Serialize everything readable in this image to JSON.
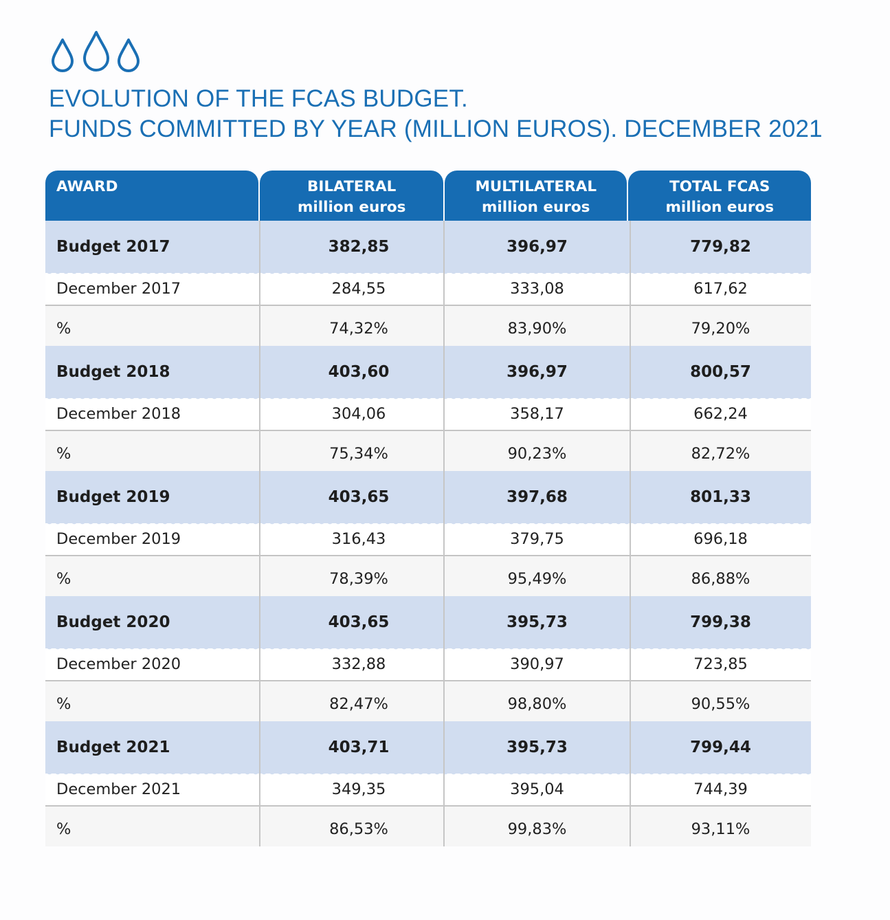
{
  "colors": {
    "brand_blue": "#166cb3",
    "title_blue": "#1a6fb4",
    "budget_row_bg": "#d1ddf0",
    "percent_row_bg": "#f6f6f6",
    "rule_gray": "#c4c4c4"
  },
  "decoration": {
    "icon": "water-drops-icon",
    "count": 3
  },
  "title": {
    "line1": "EVOLUTION OF THE FCAS BUDGET.",
    "line2": "FUNDS COMMITTED BY YEAR (MILLION EUROS). DECEMBER 2021"
  },
  "table": {
    "headers": [
      {
        "line1": "AWARD",
        "line2": ""
      },
      {
        "line1": "BILATERAL",
        "line2": "million euros"
      },
      {
        "line1": "MULTILATERAL",
        "line2": "million euros"
      },
      {
        "line1": "TOTAL FCAS",
        "line2": "million euros"
      }
    ],
    "rows": [
      {
        "type": "budget",
        "cells": [
          "Budget 2017",
          "382,85",
          "396,97",
          "779,82"
        ]
      },
      {
        "type": "dec",
        "cells": [
          "December 2017",
          "284,55",
          "333,08",
          "617,62"
        ]
      },
      {
        "type": "pct",
        "cells": [
          "%",
          "74,32%",
          "83,90%",
          "79,20%"
        ]
      },
      {
        "type": "budget",
        "cells": [
          "Budget 2018",
          "403,60",
          "396,97",
          "800,57"
        ]
      },
      {
        "type": "dec",
        "cells": [
          "December 2018",
          "304,06",
          "358,17",
          "662,24"
        ]
      },
      {
        "type": "pct",
        "cells": [
          "%",
          "75,34%",
          "90,23%",
          "82,72%"
        ]
      },
      {
        "type": "budget",
        "cells": [
          "Budget 2019",
          "403,65",
          "397,68",
          "801,33"
        ]
      },
      {
        "type": "dec",
        "cells": [
          "December 2019",
          "316,43",
          "379,75",
          "696,18"
        ]
      },
      {
        "type": "pct",
        "cells": [
          "%",
          "78,39%",
          "95,49%",
          "86,88%"
        ]
      },
      {
        "type": "budget",
        "cells": [
          "Budget 2020",
          "403,65",
          "395,73",
          "799,38"
        ]
      },
      {
        "type": "dec",
        "cells": [
          "December 2020",
          "332,88",
          "390,97",
          "723,85"
        ]
      },
      {
        "type": "pct",
        "cells": [
          "%",
          "82,47%",
          "98,80%",
          "90,55%"
        ]
      },
      {
        "type": "budget",
        "cells": [
          "Budget 2021",
          "403,71",
          "395,73",
          "799,44"
        ]
      },
      {
        "type": "dec",
        "cells": [
          "December 2021",
          "349,35",
          "395,04",
          "744,39"
        ]
      },
      {
        "type": "pct",
        "cells": [
          "%",
          "86,53%",
          "99,83%",
          "93,11%"
        ]
      }
    ]
  }
}
